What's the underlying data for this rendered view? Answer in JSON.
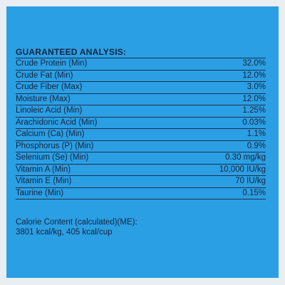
{
  "title": "GUARANTEED ANALYSIS:",
  "table": {
    "rows": [
      [
        "Crude Protein (Min)",
        "32.0%"
      ],
      [
        "Crude Fat (Min)",
        "12.0%"
      ],
      [
        "Crude Fiber (Max)",
        "3.0%"
      ],
      [
        "Moisture (Max)",
        "12.0%"
      ],
      [
        "Linoleic Acid (Min)",
        "1.25%"
      ],
      [
        "Arachidonic Acid (Min)",
        "0.03%"
      ],
      [
        "Calcium (Ca) (Min)",
        "1.1%"
      ],
      [
        "Phosphorus (P) (Min)",
        "0.9%"
      ],
      [
        "Selenium (Se) (Min)",
        "0.30 mg/kg"
      ],
      [
        "Vitamin A (Min)",
        "10,000 IU/kg"
      ],
      [
        "Vitamin E (Min)",
        "70 IU/kg"
      ],
      [
        "Taurine (Min)",
        "0.15%"
      ]
    ]
  },
  "footer": [
    "Calorie Content (calculated)(ME):",
    "3801 kcal/kg, 405 kcal/cup"
  ]
}
